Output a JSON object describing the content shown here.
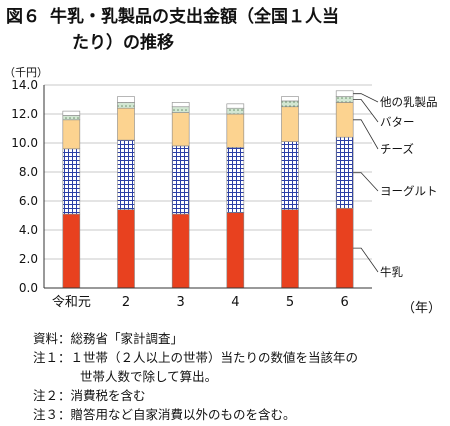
{
  "header": {
    "fig_no": "図６",
    "title_line1": "牛乳・乳製品の支出金額（全国１人当",
    "title_line2": "たり）の推移"
  },
  "units": {
    "y": "（千円）",
    "x": "（年）"
  },
  "notes": [
    "資料：総務省「家計調査」",
    "注１：１世帯（２人以上の世帯）当たりの数値を当該年の",
    "世帯人数で除して算出。",
    "注２：消費税を含む",
    "注３：贈答用など自家消費以外のものを含む。"
  ],
  "chart_data": {
    "type": "bar",
    "stacked": true,
    "categories": [
      "令和元",
      "2",
      "3",
      "4",
      "5",
      "6"
    ],
    "ylim": [
      0,
      14
    ],
    "yticks": [
      "0.0",
      "2.0",
      "4.0",
      "6.0",
      "8.0",
      "10.0",
      "12.0",
      "14.0"
    ],
    "series": [
      {
        "name": "牛乳",
        "values": [
          5.1,
          5.4,
          5.1,
          5.2,
          5.4,
          5.5
        ],
        "color": "#e8411f",
        "pattern": "solid"
      },
      {
        "name": "ヨーグルト",
        "values": [
          4.5,
          4.8,
          4.7,
          4.5,
          4.7,
          4.9
        ],
        "color": "#2b3fa6",
        "pattern": "grid"
      },
      {
        "name": "チーズ",
        "values": [
          2.0,
          2.2,
          2.3,
          2.3,
          2.4,
          2.4
        ],
        "color": "#fcd390",
        "pattern": "solid"
      },
      {
        "name": "バター",
        "values": [
          0.3,
          0.4,
          0.4,
          0.4,
          0.4,
          0.4
        ],
        "color": "#cfe3cf",
        "pattern": "dots"
      },
      {
        "name": "他の乳製品",
        "values": [
          0.3,
          0.4,
          0.3,
          0.3,
          0.3,
          0.4
        ],
        "color": "#ffffff",
        "pattern": "solid"
      }
    ]
  }
}
